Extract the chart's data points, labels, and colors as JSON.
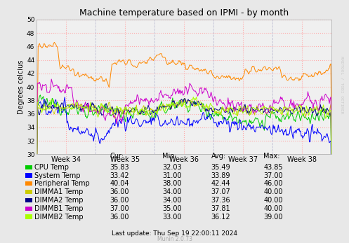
{
  "title": "Machine temperature based on IPMI - by month",
  "ylabel": "Degrees celcius",
  "ylim": [
    30,
    50
  ],
  "yticks": [
    30,
    32,
    34,
    36,
    38,
    40,
    42,
    44,
    46,
    48,
    50
  ],
  "week_labels": [
    "Week 34",
    "Week 35",
    "Week 36",
    "Week 37",
    "Week 38"
  ],
  "background_color": "#e8e8e8",
  "plot_bg_color": "#f0f0f0",
  "grid_color": "#ffaaaa",
  "series": {
    "CPU Temp": {
      "color": "#00cc00",
      "cur": "35.83",
      "min": "32.03",
      "avg": "35.49",
      "max": "43.85"
    },
    "System Temp": {
      "color": "#0000ff",
      "cur": "33.42",
      "min": "31.00",
      "avg": "33.89",
      "max": "37.00"
    },
    "Peripheral Temp": {
      "color": "#ff8800",
      "cur": "40.04",
      "min": "38.00",
      "avg": "42.44",
      "max": "46.00"
    },
    "DIMMA1 Temp": {
      "color": "#cccc00",
      "cur": "36.00",
      "min": "34.00",
      "avg": "37.07",
      "max": "40.00"
    },
    "DIMMA2 Temp": {
      "color": "#000088",
      "cur": "36.00",
      "min": "34.00",
      "avg": "37.36",
      "max": "40.00"
    },
    "DIMMB1 Temp": {
      "color": "#cc00cc",
      "cur": "37.00",
      "min": "35.00",
      "avg": "37.81",
      "max": "40.00"
    },
    "DIMMB2 Temp": {
      "color": "#aaff00",
      "cur": "36.00",
      "min": "33.00",
      "avg": "36.12",
      "max": "39.00"
    }
  },
  "col_headers": [
    "Cur:",
    "Min:",
    "Avg:",
    "Max:"
  ],
  "footer": "Last update: Thu Sep 19 22:00:11 2024",
  "munin_version": "Munin 2.0.73",
  "watermark": "RRDTOOL / TOBI OETIKER"
}
